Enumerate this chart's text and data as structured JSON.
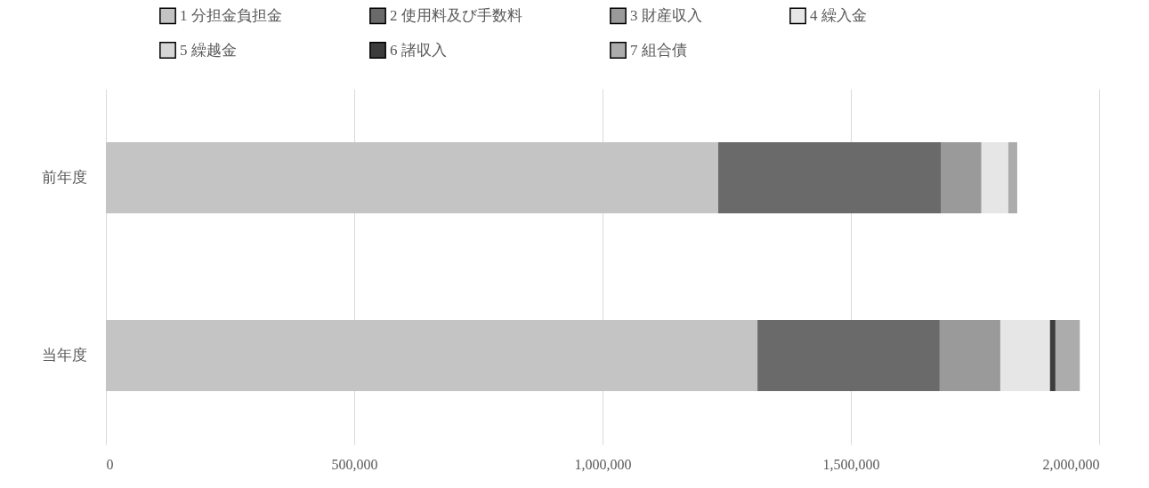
{
  "chart_data": {
    "type": "bar",
    "orientation": "horizontal",
    "stacked": true,
    "categories": [
      "前年度",
      "当年度"
    ],
    "series": [
      {
        "name": "1 分担金負担金",
        "color": "#c4c4c4",
        "values": [
          1233000,
          1312000
        ]
      },
      {
        "name": "2 使用料及び手数料",
        "color": "#6a6a6a",
        "values": [
          448000,
          367000
        ]
      },
      {
        "name": "3 財産収入",
        "color": "#9a9a9a",
        "values": [
          82000,
          122000
        ]
      },
      {
        "name": "4 繰入金",
        "color": "#e6e6e6",
        "values": [
          54000,
          100000
        ]
      },
      {
        "name": "5 繰越金",
        "color": "#d6d6d6",
        "values": [
          null,
          null
        ]
      },
      {
        "name": "6 諸収入",
        "color": "#3c3c3c",
        "values": [
          null,
          11000
        ]
      },
      {
        "name": "7 組合債",
        "color": "#acacac",
        "values": [
          18000,
          49000
        ]
      }
    ],
    "xlim": [
      0,
      2000000
    ],
    "xticks": [
      0,
      {
        "value": 500000,
        "label": "500,000"
      },
      {
        "value": 1000000,
        "label": "1,000,000"
      },
      {
        "value": 1500000,
        "label": "1,500,000"
      },
      {
        "value": 2000000,
        "label": "2,000,000"
      }
    ],
    "grid": "x",
    "legend": "top"
  }
}
